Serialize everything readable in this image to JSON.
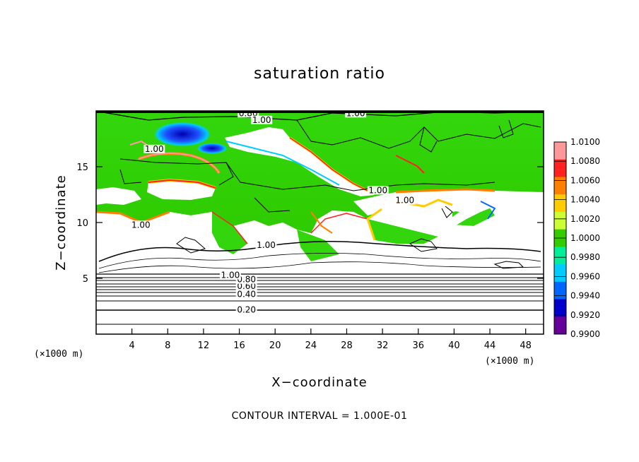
{
  "chart_data": {
    "type": "heatmap",
    "title": "saturation ratio",
    "xlabel": "X−coordinate",
    "ylabel": "Z−coordinate",
    "x_unit": "(×1000 m)",
    "z_unit": "(×1000 m)",
    "xlim": [
      0,
      50
    ],
    "ylim": [
      0,
      20
    ],
    "x_ticks": [
      4,
      8,
      12,
      16,
      20,
      24,
      28,
      32,
      36,
      40,
      44,
      48
    ],
    "y_ticks": [
      5,
      10,
      15
    ],
    "colorbar": {
      "min": 0.99,
      "max": 1.01,
      "labels": [
        "1.0100",
        "1.0080",
        "1.0060",
        "1.0040",
        "1.0020",
        "1.0000",
        "0.9980",
        "0.9960",
        "0.9940",
        "0.9920",
        "0.9900"
      ],
      "colors": [
        "#ff9999",
        "#ff2020",
        "#ff8000",
        "#ffcc00",
        "#ccff33",
        "#33cc00",
        "#00ee99",
        "#00ccff",
        "#0066ff",
        "#0000cc",
        "#660099"
      ]
    },
    "contour_interval": "CONTOUR INTERVAL = 1.000E-01",
    "contour_labels": [
      {
        "text": "0.20",
        "x": 16.8,
        "z": 2.0
      },
      {
        "text": "0.40",
        "x": 16.8,
        "z": 3.4
      },
      {
        "text": "0.60",
        "x": 16.8,
        "z": 4.1
      },
      {
        "text": "0.80",
        "x": 16.8,
        "z": 4.7
      },
      {
        "text": "0.80",
        "x": 17.0,
        "z": 19.6
      },
      {
        "text": "1.00",
        "x": 15.0,
        "z": 5.1
      },
      {
        "text": "1.00",
        "x": 19.0,
        "z": 7.8
      },
      {
        "text": "1.00",
        "x": 5.0,
        "z": 9.6
      },
      {
        "text": "1.00",
        "x": 6.5,
        "z": 16.4
      },
      {
        "text": "1.00",
        "x": 18.5,
        "z": 19.0
      },
      {
        "text": "1.00",
        "x": 29.0,
        "z": 19.6
      },
      {
        "text": "1.00",
        "x": 31.5,
        "z": 12.7
      },
      {
        "text": "1.00",
        "x": 34.5,
        "z": 11.8
      }
    ],
    "cloud_regions": [
      {
        "x": [
          0,
          50
        ],
        "z": [
          5.2,
          10.2
        ]
      },
      {
        "x": [
          6,
          12
        ],
        "z": [
          12.2,
          14.2
        ]
      },
      {
        "x": [
          16,
          31
        ],
        "z": [
          14.3,
          18.5
        ]
      },
      {
        "x": [
          27,
          50
        ],
        "z": [
          11.5,
          12.6
        ]
      },
      {
        "x": [
          38,
          44
        ],
        "z": [
          9.5,
          11.0
        ]
      }
    ],
    "dry_regions": [
      {
        "x": [
          7,
          12
        ],
        "z": [
          16.8,
          18.6
        ]
      },
      {
        "x": [
          14,
          19
        ],
        "z": [
          15.8,
          17.0
        ]
      }
    ],
    "grid": false,
    "legend": "right"
  }
}
